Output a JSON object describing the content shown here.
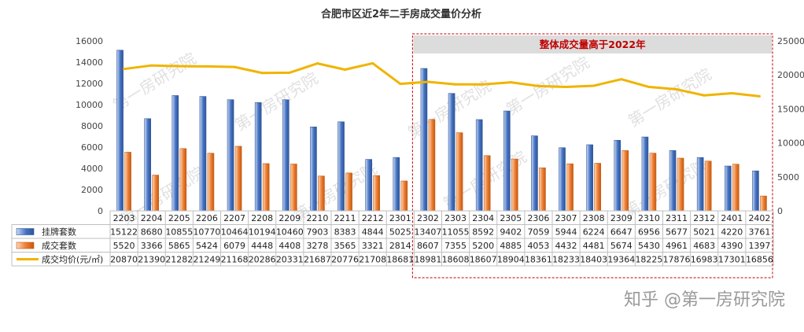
{
  "chart_data": {
    "type": "bar",
    "title": "合肥市区近2年二手房成交量价分析",
    "categories": [
      "2203",
      "2204",
      "2205",
      "2206",
      "2207",
      "2208",
      "2209",
      "2210",
      "2211",
      "2212",
      "2301",
      "2302",
      "2303",
      "2304",
      "2305",
      "2306",
      "2307",
      "2308",
      "2309",
      "2310",
      "2311",
      "2312",
      "2401",
      "2402"
    ],
    "series": [
      {
        "name": "挂牌套数",
        "type": "bar",
        "axis": "left",
        "color": "#4472c4",
        "values": [
          15122,
          8680,
          10855,
          10770,
          10464,
          10194,
          10460,
          7903,
          8383,
          4844,
          5025,
          13407,
          11055,
          8592,
          9402,
          7059,
          5944,
          6224,
          6647,
          6956,
          5677,
          5021,
          4220,
          3761
        ]
      },
      {
        "name": "成交套数",
        "type": "bar",
        "axis": "left",
        "color": "#ed7d31",
        "values": [
          5520,
          3366,
          5865,
          5424,
          6079,
          4448,
          4408,
          3278,
          3565,
          3321,
          2814,
          8607,
          7355,
          5200,
          4885,
          4053,
          4432,
          4481,
          5674,
          5430,
          4961,
          4683,
          4390,
          1397
        ]
      },
      {
        "name": "成交均价(元/㎡)",
        "type": "line",
        "axis": "right",
        "color": "#f0b400",
        "values": [
          20870,
          21390,
          21282,
          21249,
          21168,
          20286,
          20331,
          21687,
          20776,
          21708,
          18681,
          18981,
          18608,
          18607,
          18904,
          18361,
          18233,
          18403,
          19364,
          18225,
          17876,
          16983,
          17301,
          16856
        ]
      }
    ],
    "left_axis": {
      "ylim": [
        0,
        16000
      ],
      "ticks": [
        0,
        2000,
        4000,
        6000,
        8000,
        10000,
        12000,
        14000,
        16000
      ]
    },
    "right_axis": {
      "ylim": [
        0,
        25000
      ],
      "ticks": [
        0,
        5000,
        10000,
        15000,
        20000,
        25000
      ]
    },
    "data_table": true,
    "annotation": {
      "text": "整体成交量高于2022年",
      "range": [
        "2302",
        "2402"
      ],
      "text_color": "#c00000"
    }
  },
  "watermark": "第一房研究院",
  "credit": "知乎 @第一房研究院"
}
